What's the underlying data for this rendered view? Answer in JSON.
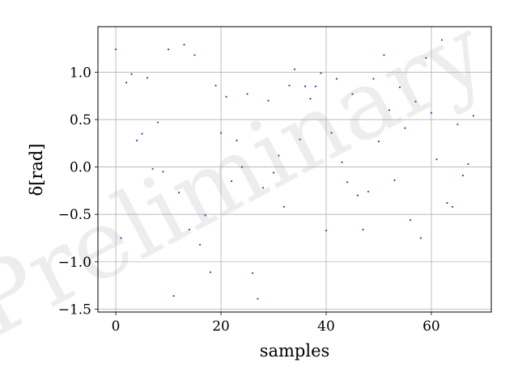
{
  "chart_data": {
    "type": "scatter",
    "title": "",
    "xlabel": "samples",
    "ylabel": "δ[rad]",
    "watermark": "Preliminary",
    "xlim": [
      -3.4,
      71.4
    ],
    "ylim": [
      -1.53,
      1.48
    ],
    "xticks": [
      0,
      20,
      40,
      60
    ],
    "yticks": [
      -1.5,
      -1.0,
      -0.5,
      0.0,
      0.5,
      1.0
    ],
    "ytick_labels": [
      "−1.5",
      "−1.0",
      "−0.5",
      "0.0",
      "0.5",
      "1.0"
    ],
    "grid": true,
    "legend": "none",
    "point_color": "#3a3acc",
    "grid_color": "#b0b0b0",
    "series": [
      {
        "x": [
          0,
          1,
          2,
          3,
          4,
          5,
          6,
          7,
          8,
          9,
          10,
          11,
          12,
          13,
          14,
          15,
          16,
          17,
          18,
          19,
          20,
          21,
          22,
          23,
          24,
          25,
          26,
          27,
          28,
          29,
          30,
          31,
          32,
          33,
          34,
          35,
          36,
          37,
          38,
          39,
          40,
          41,
          42,
          43,
          44,
          45,
          46,
          47,
          48,
          49,
          50,
          51,
          52,
          53,
          54,
          55,
          56,
          57,
          58,
          59,
          60,
          61,
          62,
          63,
          64,
          65,
          66,
          67,
          68
        ],
        "y": [
          1.24,
          -0.75,
          0.89,
          0.98,
          0.28,
          0.35,
          0.94,
          -0.02,
          0.47,
          -0.05,
          1.24,
          -1.36,
          -0.27,
          1.29,
          -0.66,
          1.18,
          -0.82,
          -0.51,
          -1.11,
          0.86,
          0.36,
          0.74,
          -0.15,
          0.28,
          0.0,
          0.77,
          -1.12,
          -1.39,
          -0.22,
          0.7,
          -0.06,
          0.12,
          -0.42,
          0.86,
          1.03,
          0.29,
          0.85,
          0.72,
          0.85,
          0.99,
          -0.67,
          0.36,
          0.93,
          0.05,
          -0.16,
          0.77,
          -0.3,
          -0.66,
          -0.26,
          0.93,
          0.27,
          1.18,
          0.6,
          -0.14,
          0.84,
          0.41,
          -0.56,
          0.69,
          -0.75,
          1.15,
          0.57,
          0.08,
          1.34,
          -0.38,
          -0.42,
          0.45,
          -0.09,
          0.03,
          0.54
        ]
      }
    ]
  }
}
